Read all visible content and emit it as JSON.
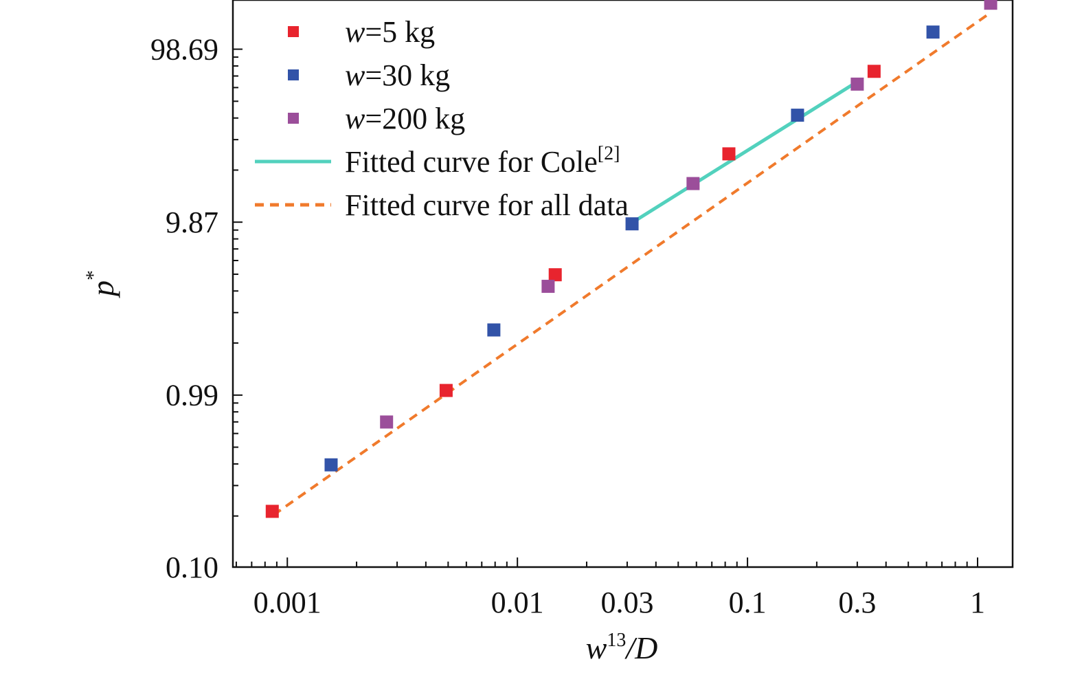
{
  "chart_data": {
    "type": "scatter",
    "x_scale": "log",
    "y_scale": "log",
    "xlim": [
      0.00058,
      1.42
    ],
    "ylim": [
      0.1,
      190
    ],
    "x_ticks": [
      {
        "value": 0.001,
        "label": "0.001"
      },
      {
        "value": 0.01,
        "label": "0.01"
      },
      {
        "value": 0.03,
        "label": "0.03"
      },
      {
        "value": 0.1,
        "label": "0.1"
      },
      {
        "value": 0.3,
        "label": "0.3"
      },
      {
        "value": 1,
        "label": "1"
      }
    ],
    "y_ticks": [
      {
        "value": 0.1,
        "label": "0.10"
      },
      {
        "value": 0.99,
        "label": "0.99"
      },
      {
        "value": 9.87,
        "label": "9.87"
      },
      {
        "value": 98.69,
        "label": "98.69"
      }
    ],
    "xlabel": {
      "base": "w",
      "sup": "13",
      "rest": "/D"
    },
    "ylabel": {
      "base": "p",
      "sup": "*"
    },
    "legend": {
      "placement": "top-left",
      "entries": [
        {
          "prefix": "w",
          "text": "=5 kg",
          "sup": "",
          "kind": "marker",
          "color": "#e8242e"
        },
        {
          "prefix": "w",
          "text": "=30 kg",
          "sup": "",
          "kind": "marker",
          "color": "#3253a8"
        },
        {
          "prefix": "w",
          "text": "=200 kg",
          "sup": "",
          "kind": "marker",
          "color": "#9b4e9a"
        },
        {
          "prefix": "",
          "text": "Fitted curve for Cole",
          "sup": "[2]",
          "kind": "solid",
          "color": "#52d1bd"
        },
        {
          "prefix": "",
          "text": "Fitted curve for all data",
          "sup": "",
          "kind": "dashed",
          "color": "#f07a2c"
        }
      ]
    },
    "series": [
      {
        "name": "w=5 kg",
        "color": "#e8242e",
        "marker": "square",
        "points": [
          [
            0.00086,
            0.21
          ],
          [
            0.0049,
            1.05
          ],
          [
            0.0146,
            4.9
          ],
          [
            0.083,
            24.5
          ],
          [
            0.355,
            73.5
          ]
        ]
      },
      {
        "name": "w=30 kg",
        "color": "#3253a8",
        "marker": "square",
        "points": [
          [
            0.00155,
            0.39
          ],
          [
            0.0079,
            2.35
          ],
          [
            0.0315,
            9.65
          ],
          [
            0.165,
            41
          ],
          [
            0.64,
            124
          ]
        ]
      },
      {
        "name": "w=200 kg",
        "color": "#9b4e9a",
        "marker": "square",
        "points": [
          [
            0.0027,
            0.69
          ],
          [
            0.0136,
            4.2
          ],
          [
            0.058,
            16.5
          ],
          [
            0.3,
            62
          ],
          [
            1.14,
            182
          ]
        ]
      }
    ],
    "lines": [
      {
        "name": "Fitted curve for Cole",
        "color": "#52d1bd",
        "style": "solid",
        "points": [
          [
            0.0315,
            9.8
          ],
          [
            0.3,
            64
          ]
        ]
      },
      {
        "name": "Fitted curve for all data",
        "color": "#f07a2c",
        "style": "dashed",
        "points": [
          [
            0.00087,
            0.2
          ],
          [
            1.12,
            158
          ]
        ]
      }
    ]
  }
}
